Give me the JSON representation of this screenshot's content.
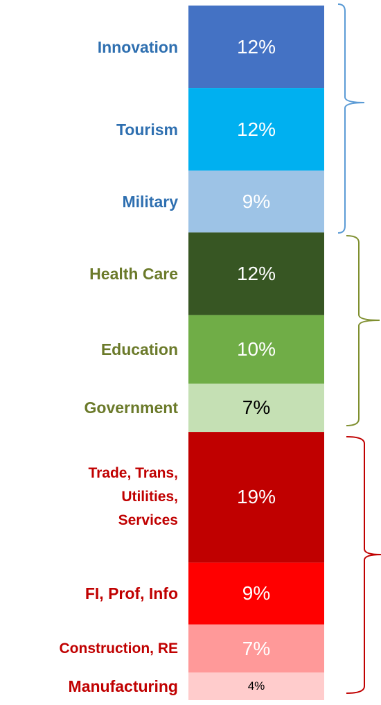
{
  "chart_data": {
    "type": "stacked-bar",
    "categories": [
      "Innovation",
      "Tourism",
      "Military",
      "Health Care",
      "Education",
      "Government",
      "Trade, Trans,\nUtilities,\nServices",
      "FI, Prof, Info",
      "Construction, RE",
      "Manufacturing"
    ],
    "values": [
      12,
      12,
      9,
      12,
      10,
      7,
      19,
      9,
      7,
      4
    ],
    "value_labels": [
      "12%",
      "12%",
      "9%",
      "12%",
      "10%",
      "7%",
      "19%",
      "9%",
      "7%",
      "4%"
    ],
    "colors": [
      "#4472c4",
      "#00b0f0",
      "#9dc3e6",
      "#375623",
      "#70ad47",
      "#c5e0b4",
      "#c00000",
      "#ff0000",
      "#ff9999",
      "#ffcccc"
    ],
    "value_label_colors": [
      "#ffffff",
      "#ffffff",
      "#ffffff",
      "#ffffff",
      "#ffffff",
      "#000000",
      "#ffffff",
      "#ffffff",
      "#ffffff",
      "#000000"
    ],
    "label_colors": [
      "#2e6fb0",
      "#2e6fb0",
      "#2e6fb0",
      "#6b7a2a",
      "#6b7a2a",
      "#6b7a2a",
      "#c00000",
      "#c00000",
      "#c00000",
      "#c00000"
    ]
  }
}
